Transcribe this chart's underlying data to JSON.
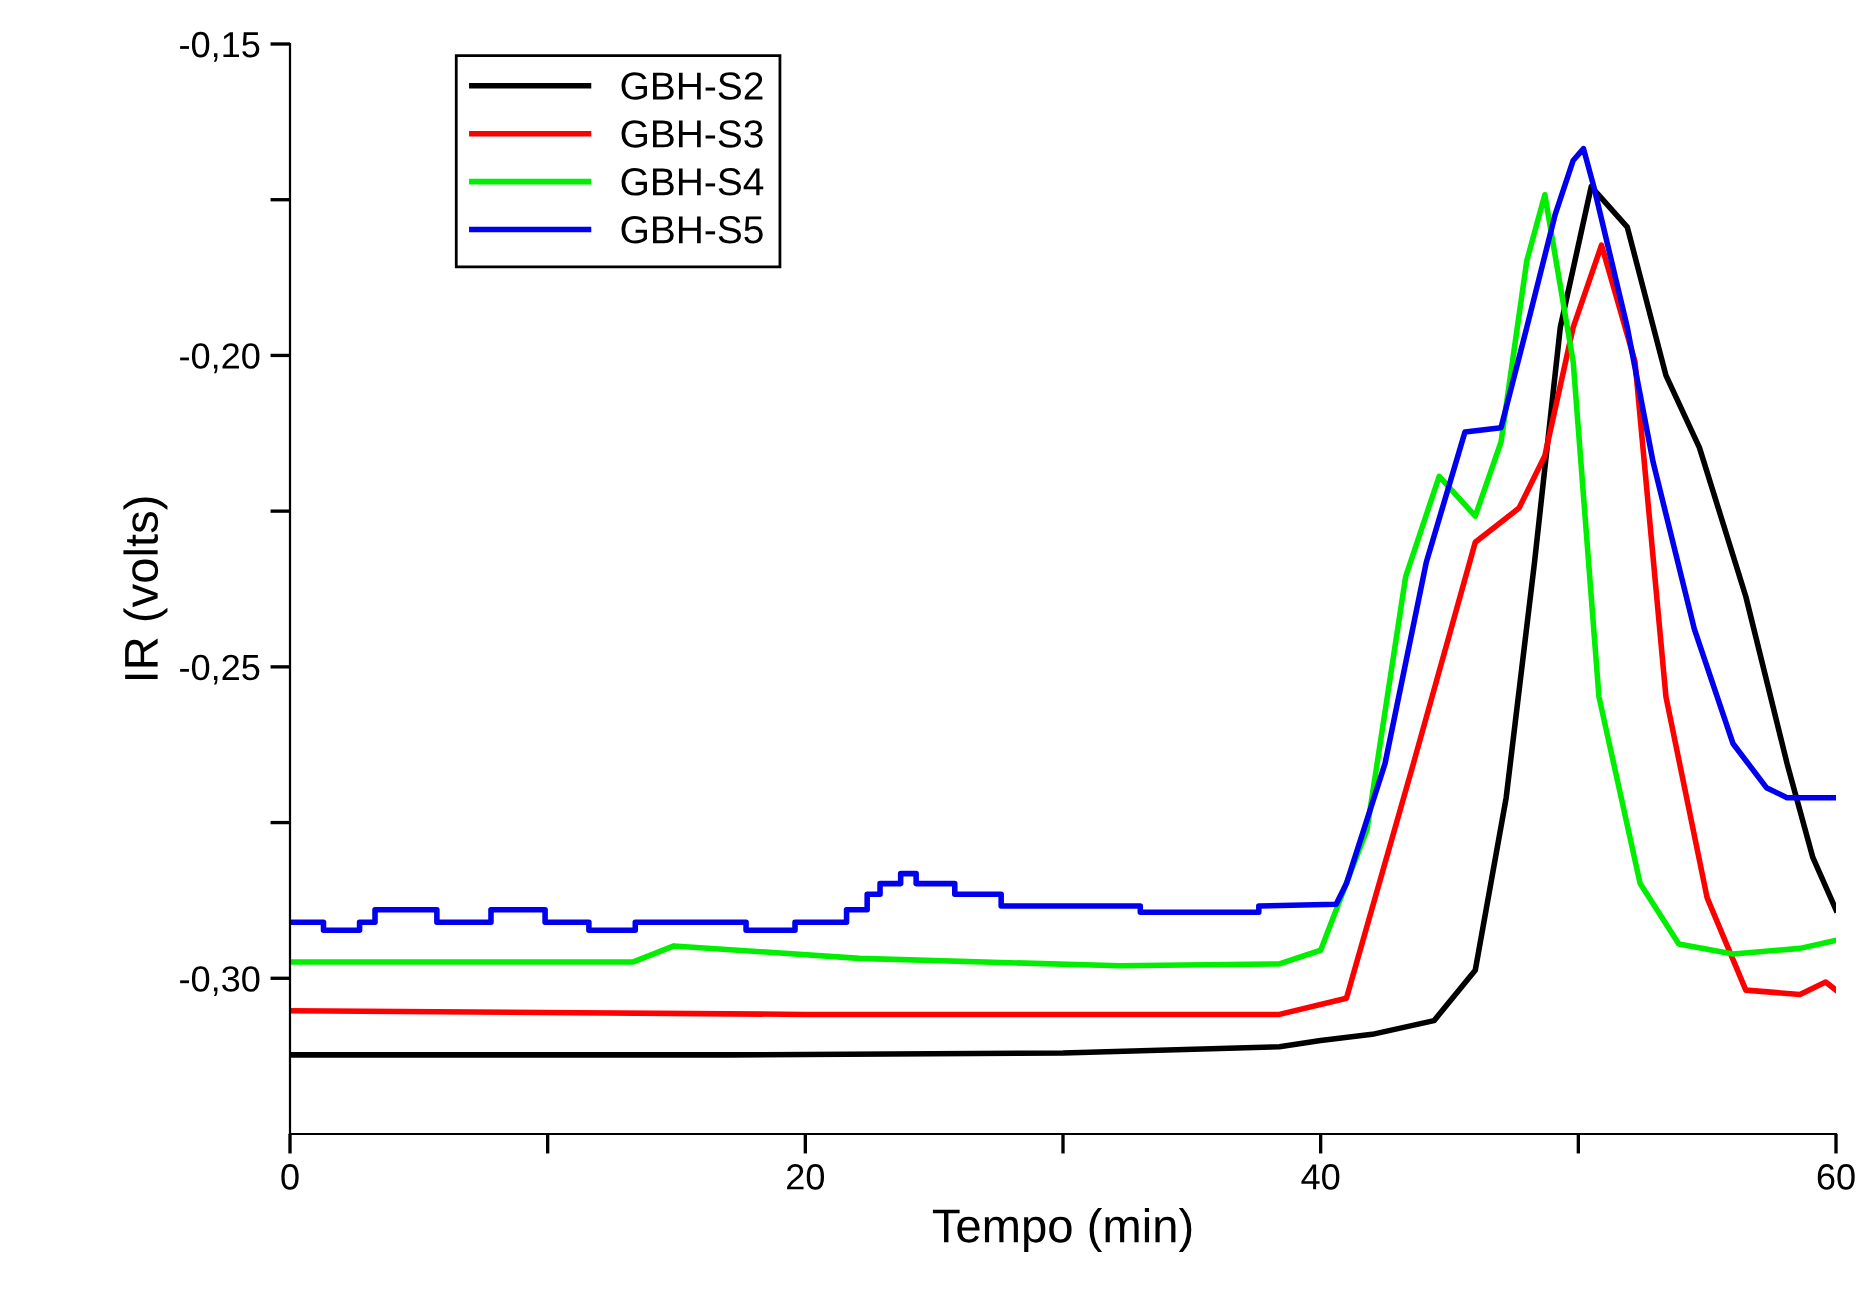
{
  "chart_data": {
    "type": "line",
    "xlabel": "Tempo (min)",
    "ylabel": "IR (volts)",
    "xlim": [
      0,
      60
    ],
    "ylim": [
      -0.325,
      -0.15
    ],
    "xticks": [
      0,
      {
        "value": 10,
        "label": null
      },
      20,
      {
        "value": 30,
        "label": null
      },
      40,
      {
        "value": 50,
        "label": null
      },
      60
    ],
    "yticks": [
      {
        "value": -0.3,
        "label": "-0,30"
      },
      {
        "value": -0.275,
        "label": null
      },
      {
        "value": -0.25,
        "label": "-0,25"
      },
      {
        "value": -0.225,
        "label": null
      },
      {
        "value": -0.2,
        "label": "-0,20"
      },
      {
        "value": -0.175,
        "label": null
      },
      {
        "value": -0.15,
        "label": "-0,15"
      }
    ],
    "grid": false,
    "legend": "top left",
    "line_style": "solid",
    "marker": "none",
    "series": [
      {
        "name": "GBH-S2",
        "color": "#000000",
        "x": [
          0,
          17,
          30,
          38.4,
          40,
          42,
          44.4,
          46.0,
          47.2,
          48.3,
          49.3,
          50.5,
          51.9,
          53.4,
          54.7,
          56.5,
          58.1,
          59.1,
          60
        ],
        "values": [
          -0.3123,
          -0.3123,
          -0.312,
          -0.311,
          -0.31,
          -0.309,
          -0.3068,
          -0.2987,
          -0.271,
          -0.2332,
          -0.1955,
          -0.1729,
          -0.1794,
          -0.2032,
          -0.2148,
          -0.2387,
          -0.2655,
          -0.2806,
          -0.289
        ]
      },
      {
        "name": "GBH-S3",
        "color": "#ff0000",
        "x": [
          0,
          20,
          37,
          38.4,
          41.0,
          43.6,
          46.0,
          47.7,
          48.7,
          49.8,
          50.9,
          52.2,
          53.4,
          55.0,
          56.5,
          58.6,
          59.6,
          60
        ],
        "values": [
          -0.3052,
          -0.3058,
          -0.3058,
          -0.3058,
          -0.3032,
          -0.2655,
          -0.23,
          -0.2245,
          -0.2161,
          -0.1955,
          -0.1823,
          -0.201,
          -0.2548,
          -0.2871,
          -0.3019,
          -0.3026,
          -0.3006,
          -0.3019
        ]
      },
      {
        "name": "GBH-S4",
        "color": "#00ee00",
        "x": [
          0,
          13.3,
          14.9,
          22.1,
          32.2,
          38.4,
          40,
          41.8,
          43.3,
          44.6,
          46.0,
          47.0,
          48.0,
          48.7,
          49.8,
          50.8,
          52.4,
          53.9,
          56.0,
          58.6,
          60
        ],
        "values": [
          -0.2974,
          -0.2974,
          -0.2948,
          -0.2968,
          -0.298,
          -0.2977,
          -0.2955,
          -0.2761,
          -0.2355,
          -0.2194,
          -0.2258,
          -0.2139,
          -0.1848,
          -0.1742,
          -0.201,
          -0.2548,
          -0.2848,
          -0.2945,
          -0.2961,
          -0.2952,
          -0.2939
        ]
      },
      {
        "name": "GBH-S5",
        "color": "#0000ee",
        "x": [
          0,
          1.3,
          1.3,
          2.7,
          2.7,
          3.3,
          3.3,
          5.7,
          5.7,
          7.8,
          7.8,
          9.9,
          9.9,
          11.6,
          11.6,
          13.4,
          13.4,
          17.7,
          17.7,
          19.6,
          19.6,
          21.6,
          21.6,
          22.4,
          22.4,
          22.9,
          22.9,
          23.7,
          23.7,
          24.3,
          24.3,
          25.8,
          25.8,
          27.6,
          27.6,
          33.0,
          33.0,
          37.6,
          37.6,
          40.6,
          41.0,
          42.5,
          44.1,
          45.6,
          47.0,
          48.0,
          49.1,
          49.8,
          50.2,
          50.6,
          51.9,
          52.9,
          54.5,
          56.0,
          57.3,
          58.1,
          60
        ],
        "values": [
          -0.291,
          -0.291,
          -0.2923,
          -0.2923,
          -0.291,
          -0.291,
          -0.289,
          -0.289,
          -0.291,
          -0.291,
          -0.289,
          -0.289,
          -0.291,
          -0.291,
          -0.2923,
          -0.2923,
          -0.291,
          -0.291,
          -0.2923,
          -0.2923,
          -0.291,
          -0.291,
          -0.289,
          -0.289,
          -0.2865,
          -0.2865,
          -0.2848,
          -0.2848,
          -0.2832,
          -0.2832,
          -0.2848,
          -0.2848,
          -0.2865,
          -0.2865,
          -0.2884,
          -0.2884,
          -0.2894,
          -0.2894,
          -0.2884,
          -0.2881,
          -0.2848,
          -0.2655,
          -0.2332,
          -0.2123,
          -0.2116,
          -0.1955,
          -0.1774,
          -0.1687,
          -0.1668,
          -0.1729,
          -0.1955,
          -0.2171,
          -0.2439,
          -0.2623,
          -0.2694,
          -0.271,
          -0.271
        ]
      }
    ]
  }
}
